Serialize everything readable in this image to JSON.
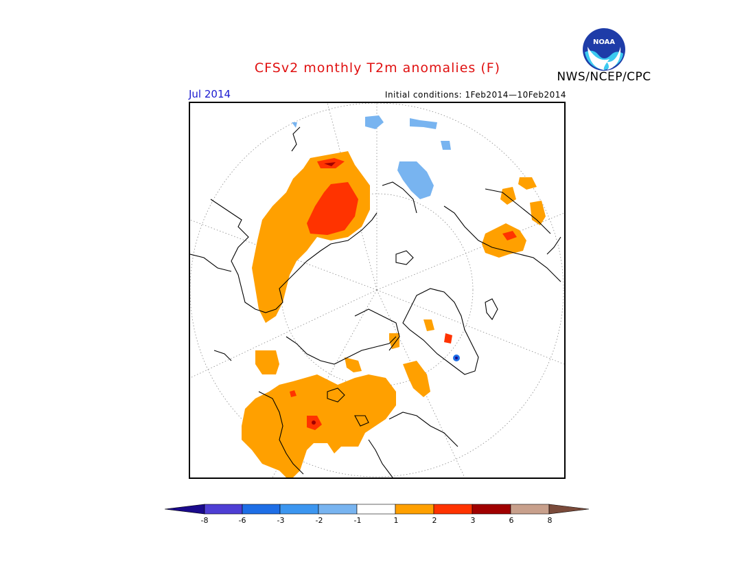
{
  "title": "CFSv2 monthly T2m anomalies (F)",
  "period": "Jul 2014",
  "initial_conditions": "Initial conditions: 1Feb2014—10Feb2014",
  "organization": "NWS/NCEP/CPC",
  "logo": {
    "text": "NOAA",
    "icon": "noaa-logo-icon"
  },
  "colors": {
    "title": "#e01010",
    "period": "#1a1ad0",
    "anomaly_orange": "#ffa000",
    "anomaly_red": "#ff3300",
    "anomaly_darkred": "#a00000",
    "anomaly_lightblue": "#78b4f0",
    "anomaly_blue": "#1e6ee6"
  },
  "legend": {
    "labels": [
      "-8",
      "-6",
      "-3",
      "-2",
      "-1",
      "1",
      "2",
      "3",
      "6",
      "8"
    ],
    "colors": [
      "#1a0a8c",
      "#4e3ed4",
      "#1e6ee6",
      "#3c96f0",
      "#78b4f0",
      "#ffffff",
      "#ffa000",
      "#ff3300",
      "#a00000",
      "#c8a08c",
      "#7a4a3a"
    ]
  }
}
